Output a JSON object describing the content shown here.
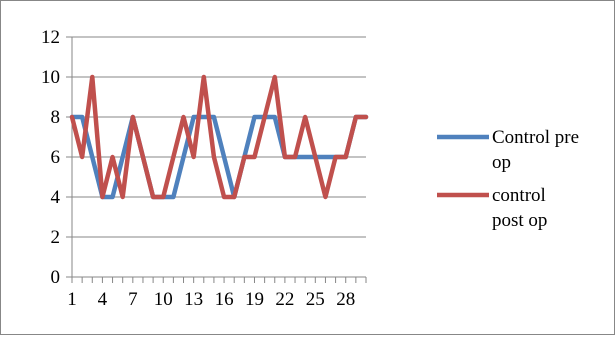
{
  "chart_data": {
    "type": "line",
    "title": "",
    "xlabel": "",
    "ylabel": "",
    "ylim": [
      0,
      12
    ],
    "y_ticks": [
      "0",
      "2",
      "4",
      "6",
      "8",
      "10",
      "12"
    ],
    "x": [
      1,
      2,
      3,
      4,
      5,
      6,
      7,
      8,
      9,
      10,
      11,
      12,
      13,
      14,
      15,
      16,
      17,
      18,
      19,
      20,
      21,
      22,
      23,
      24,
      25,
      26,
      27,
      28,
      29,
      30
    ],
    "x_tick_labels": [
      "1",
      "4",
      "7",
      "10",
      "13",
      "16",
      "19",
      "22",
      "25",
      "28"
    ],
    "x_tick_values": [
      1,
      4,
      7,
      10,
      13,
      16,
      19,
      22,
      25,
      28
    ],
    "grid": "horizontal",
    "legend_position": "right",
    "series": [
      {
        "name": "Control pre op",
        "legend_lines": [
          "Control pre",
          "op"
        ],
        "color": "#4f81bd",
        "values": [
          8,
          8,
          6,
          4,
          4,
          6,
          8,
          6,
          4,
          4,
          4,
          6,
          8,
          8,
          8,
          6,
          4,
          6,
          8,
          8,
          8,
          6,
          6,
          6,
          6,
          6,
          6,
          6,
          8,
          8
        ]
      },
      {
        "name": "control post op",
        "legend_lines": [
          "control",
          "post op"
        ],
        "color": "#c0504d",
        "values": [
          8,
          6,
          10,
          4,
          6,
          4,
          8,
          6,
          4,
          4,
          6,
          8,
          6,
          10,
          6,
          4,
          4,
          6,
          6,
          8,
          10,
          6,
          6,
          8,
          6,
          4,
          6,
          6,
          8,
          8
        ]
      }
    ]
  }
}
